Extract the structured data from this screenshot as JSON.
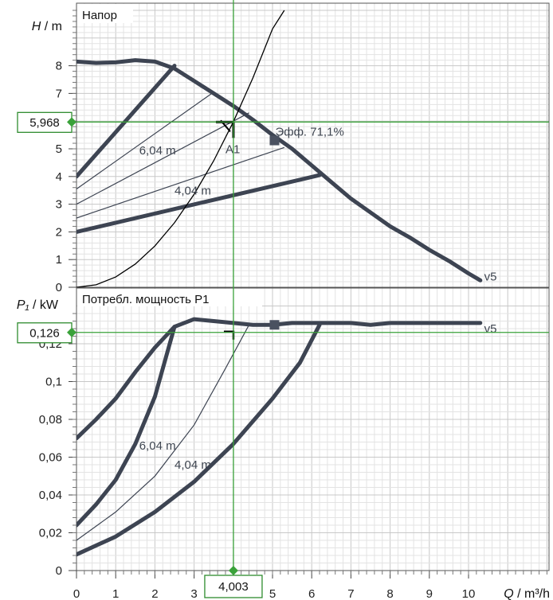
{
  "chart_data": [
    {
      "type": "line",
      "panel": "head",
      "title": "Напор",
      "ylabel_symbol": "H",
      "ylabel_unit": " / m",
      "xlabel_symbol": "Q",
      "xlabel_unit": " / m³/h",
      "xlim": [
        0,
        12
      ],
      "ylim": [
        0,
        10
      ],
      "x_ticks": [
        "0",
        "1",
        "2",
        "3",
        "4",
        "5",
        "6",
        "7",
        "8",
        "9",
        "10"
      ],
      "y_ticks": [
        "0",
        "1",
        "2",
        "3",
        "4",
        "5",
        "6",
        "7",
        "8"
      ],
      "grid": true,
      "series": [
        {
          "name": "v5",
          "role": "max",
          "points": [
            [
              0,
              8.15
            ],
            [
              0.5,
              8.1
            ],
            [
              1,
              8.12
            ],
            [
              1.5,
              8.2
            ],
            [
              2,
              8.15
            ],
            [
              2.5,
              7.9
            ],
            [
              3,
              7.45
            ],
            [
              3.5,
              7.0
            ],
            [
              4,
              6.55
            ],
            [
              4.5,
              6.05
            ],
            [
              5,
              5.5
            ],
            [
              5.5,
              5.0
            ],
            [
              6,
              4.4
            ],
            [
              6.5,
              3.8
            ],
            [
              7,
              3.2
            ],
            [
              7.5,
              2.7
            ],
            [
              8,
              2.2
            ],
            [
              8.5,
              1.8
            ],
            [
              9,
              1.35
            ],
            [
              9.5,
              0.95
            ],
            [
              10,
              0.5
            ],
            [
              10.3,
              0.25
            ]
          ]
        },
        {
          "name": "6,04 m",
          "role": "const-pressure",
          "points": [
            [
              0,
              4.0
            ],
            [
              2.5,
              8.0
            ]
          ]
        },
        {
          "name": "4,04 m",
          "role": "const-pressure",
          "points": [
            [
              0,
              2.0
            ],
            [
              6.2,
              4.05
            ]
          ]
        },
        {
          "role": "thin",
          "points": [
            [
              0,
              3.55
            ],
            [
              3.5,
              7.05
            ]
          ]
        },
        {
          "role": "thin",
          "points": [
            [
              0,
              3.0
            ],
            [
              4.4,
              6.3
            ]
          ]
        },
        {
          "role": "thin",
          "points": [
            [
              0,
              2.5
            ],
            [
              5.3,
              5.05
            ]
          ]
        },
        {
          "role": "system",
          "points": [
            [
              0,
              0
            ],
            [
              0.5,
              0.09
            ],
            [
              1,
              0.37
            ],
            [
              1.5,
              0.84
            ],
            [
              2,
              1.49
            ],
            [
              2.5,
              2.33
            ],
            [
              3,
              3.36
            ],
            [
              3.5,
              4.57
            ],
            [
              4,
              5.97
            ],
            [
              4.5,
              7.56
            ],
            [
              5,
              9.33
            ],
            [
              5.3,
              10.0
            ]
          ]
        }
      ],
      "duty_point": {
        "label": "A1",
        "x": 4.003,
        "y": 5.968
      },
      "efficiency_point": {
        "label": "Эфф.  71,1%",
        "x": 5.05,
        "y": 5.3
      },
      "curve_labels": [
        {
          "text": "6,04 m",
          "x": 1.6,
          "y": 4.8
        },
        {
          "text": "4,04 m",
          "x": 2.5,
          "y": 3.35
        },
        {
          "text": "v5",
          "x": 10.4,
          "y": 0.25
        }
      ],
      "readout": {
        "x_value": "4,003",
        "y_value": "5,968"
      }
    },
    {
      "type": "line",
      "panel": "power",
      "title": "Потребл. мощность P1",
      "ylabel_symbol": "P₁",
      "ylabel_unit": " / kW",
      "xlim": [
        0,
        12
      ],
      "ylim": [
        0,
        0.14
      ],
      "y_ticks": [
        "0",
        "0,02",
        "0,04",
        "0,06",
        "0,08",
        "0,1",
        "0,12"
      ],
      "grid": true,
      "series": [
        {
          "name": "v5",
          "role": "max",
          "points": [
            [
              0,
              0.07
            ],
            [
              0.5,
              0.08
            ],
            [
              1,
              0.091
            ],
            [
              1.5,
              0.105
            ],
            [
              2,
              0.118
            ],
            [
              2.5,
              0.129
            ],
            [
              3,
              0.133
            ],
            [
              3.5,
              0.132
            ],
            [
              4,
              0.131
            ],
            [
              4.5,
              0.13
            ],
            [
              5,
              0.13
            ],
            [
              5.5,
              0.131
            ],
            [
              6,
              0.131
            ],
            [
              6.5,
              0.131
            ],
            [
              7,
              0.131
            ],
            [
              7.5,
              0.13
            ],
            [
              8,
              0.131
            ],
            [
              8.5,
              0.131
            ],
            [
              9,
              0.131
            ],
            [
              9.5,
              0.131
            ],
            [
              10,
              0.131
            ],
            [
              10.3,
              0.131
            ]
          ]
        },
        {
          "name": "6,04 m",
          "role": "const-pressure",
          "points": [
            [
              0,
              0.024
            ],
            [
              0.5,
              0.035
            ],
            [
              1,
              0.048
            ],
            [
              1.5,
              0.067
            ],
            [
              2,
              0.092
            ],
            [
              2.5,
              0.129
            ]
          ]
        },
        {
          "name": "4,04 m",
          "role": "const-pressure",
          "points": [
            [
              0,
              0.0085
            ],
            [
              1,
              0.018
            ],
            [
              2,
              0.031
            ],
            [
              3,
              0.047
            ],
            [
              4,
              0.067
            ],
            [
              5,
              0.091
            ],
            [
              5.7,
              0.11
            ],
            [
              6.2,
              0.13
            ]
          ]
        },
        {
          "role": "thin",
          "points": [
            [
              0,
              0.016
            ],
            [
              1,
              0.031
            ],
            [
              2,
              0.05
            ],
            [
              3,
              0.077
            ],
            [
              3.8,
              0.107
            ],
            [
              4.4,
              0.13
            ]
          ]
        }
      ],
      "duty_point": {
        "label": "",
        "x": 4.003,
        "y": 0.126
      },
      "efficiency_point": {
        "label": "",
        "x": 5.05,
        "y": 0.13
      },
      "curve_labels": [
        {
          "text": "6,04 m",
          "x": 1.6,
          "y": 0.064
        },
        {
          "text": "4,04 m",
          "x": 2.5,
          "y": 0.054
        },
        {
          "text": "v5",
          "x": 10.4,
          "y": 0.126
        }
      ],
      "readout": {
        "x_value": "4,003",
        "y_value": "0,126"
      }
    }
  ],
  "colors": {
    "curve": "#3d4452",
    "thin": "#3d4452",
    "system": "#000000",
    "grid_minor": "#e3e3e3",
    "grid_major": "#c8c8c8",
    "crosshair": "#3aa23a",
    "readout_border": "#2e8b2e",
    "marker": "#4a5160"
  }
}
